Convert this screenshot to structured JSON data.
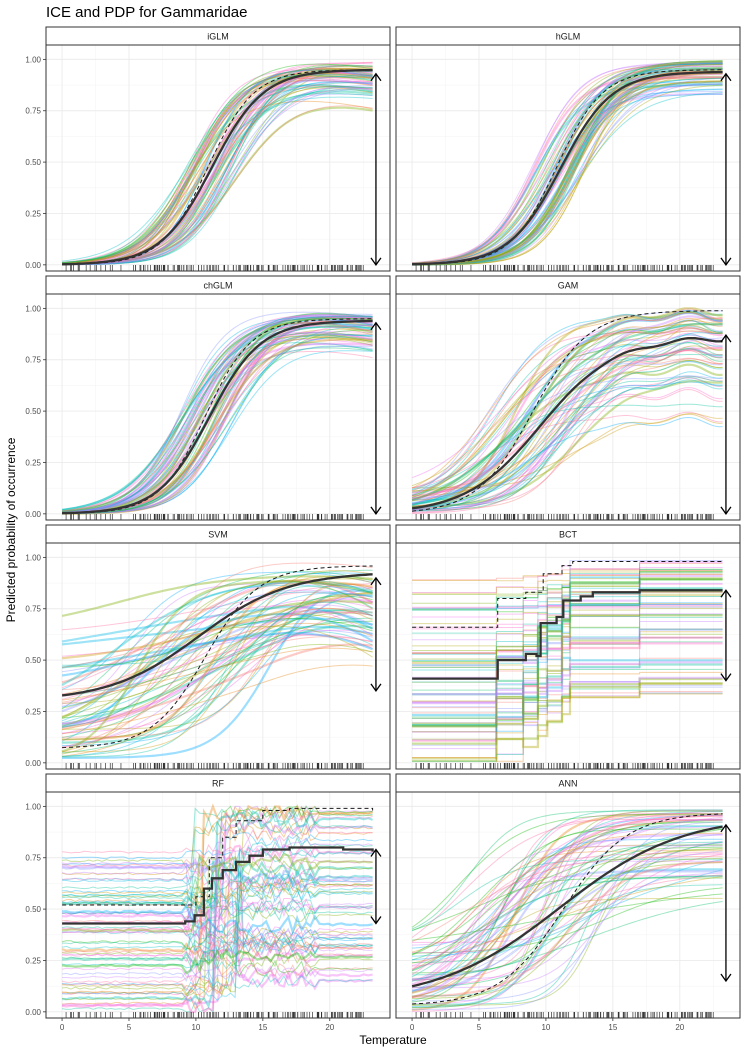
{
  "chart_data": {
    "type": "line",
    "title": "ICE and PDP for Gammaridae",
    "xlabel": "Temperature",
    "ylabel": "Predicted probability of occurrence",
    "xlim": [
      -1.2,
      24.5
    ],
    "ylim": [
      -0.03,
      1.07
    ],
    "x_ticks": [
      0,
      5,
      10,
      15,
      20
    ],
    "x_tick_labels": [
      "0",
      "5",
      "10",
      "15",
      "20"
    ],
    "y_ticks": [
      0,
      0.25,
      0.5,
      0.75,
      1
    ],
    "y_tick_labels": [
      "0.00",
      "0.25",
      "0.50",
      "0.75",
      "1.00"
    ],
    "grid": true,
    "legend": "none",
    "layout": {
      "rows": 4,
      "cols": 2
    },
    "colors": {
      "pdp": "#333333",
      "ice": [
        "#F8766D",
        "#E68613",
        "#CD9600",
        "#ABA300",
        "#7CAE00",
        "#0CB702",
        "#00BE67",
        "#00C19A",
        "#00BFC4",
        "#00B8E7",
        "#00A9FF",
        "#8494FF",
        "#C77CFF",
        "#ED68ED",
        "#FF61CC",
        "#FF68A1"
      ],
      "strip_fill": "#FFFFFF",
      "strip_border": "#333333",
      "grid": "#EBEBEB"
    },
    "rug_x": [
      0.3,
      0.7,
      1.2,
      1.8,
      2.1,
      2.9,
      3.6,
      4.4,
      5.5,
      6.2,
      6.9,
      7.1,
      7.6,
      8.3,
      8.7,
      9.1,
      9.4,
      9.8,
      10.2,
      10.6,
      11.0,
      11.3,
      11.7,
      12.1,
      12.4,
      12.8,
      13.2,
      13.6,
      13.9,
      14.3,
      14.7,
      15.0,
      15.4,
      15.8,
      16.1,
      16.5,
      16.9,
      17.2,
      17.6,
      18.0,
      18.3,
      18.7,
      19.1,
      19.4,
      19.8,
      20.2,
      20.6,
      20.9,
      21.3,
      21.7,
      22.1,
      22.5
    ],
    "panels": [
      {
        "name": "iGLM",
        "ice": {
          "kind": "sigmoid",
          "x0": [
            9.2,
            13.2
          ],
          "k": [
            0.42,
            0.62
          ],
          "top": [
            0.8,
            0.995
          ],
          "bottom": [
            0,
            0.002
          ],
          "droop": 0.001
        },
        "pdp": {
          "kind": "sigmoid",
          "x0": 11.2,
          "k": 0.52,
          "top": 0.95,
          "bottom": 0
        },
        "mean_dashed": {
          "kind": "sigmoid",
          "x0": 10.9,
          "k": 0.58,
          "top": 0.95,
          "bottom": 0
        },
        "arrow": [
          0.93,
          0.0
        ]
      },
      {
        "name": "hGLM",
        "ice": {
          "kind": "sigmoid",
          "x0": [
            9.0,
            13.0
          ],
          "k": [
            0.44,
            0.62
          ],
          "top": [
            0.82,
            0.995
          ],
          "bottom": [
            0,
            0.002
          ],
          "droop": 0.0
        },
        "pdp": {
          "kind": "sigmoid",
          "x0": 11.1,
          "k": 0.52,
          "top": 0.94,
          "bottom": 0
        },
        "mean_dashed": {
          "kind": "sigmoid",
          "x0": 10.8,
          "k": 0.58,
          "top": 0.95,
          "bottom": 0
        },
        "arrow": [
          0.93,
          0.0
        ]
      },
      {
        "name": "chGLM",
        "ice": {
          "kind": "sigmoid",
          "x0": [
            8.8,
            13.0
          ],
          "k": [
            0.42,
            0.62
          ],
          "top": [
            0.8,
            0.995
          ],
          "bottom": [
            0,
            0.002
          ],
          "droop": 0.0012
        },
        "pdp": {
          "kind": "sigmoid",
          "x0": 11.0,
          "k": 0.52,
          "top": 0.94,
          "bottom": 0
        },
        "mean_dashed": {
          "kind": "sigmoid",
          "x0": 10.7,
          "k": 0.58,
          "top": 0.95,
          "bottom": 0
        },
        "arrow": [
          0.93,
          0.0
        ]
      },
      {
        "name": "GAM",
        "ice": {
          "kind": "sigmoid",
          "x0": [
            5.5,
            12.5
          ],
          "k": [
            0.3,
            0.58
          ],
          "top": [
            0.3,
            0.995
          ],
          "bottom": [
            0,
            0.15
          ],
          "droop": 0.0,
          "wiggle": 0.04
        },
        "pdp": {
          "kind": "sigmoid",
          "x0": 9.6,
          "k": 0.36,
          "top": 0.86,
          "bottom": 0,
          "wiggle": 0.015
        },
        "mean_dashed": {
          "kind": "sigmoid",
          "x0": 9.0,
          "k": 0.48,
          "top": 0.99,
          "bottom": 0
        },
        "arrow": [
          0.87,
          0.0
        ]
      },
      {
        "name": "SVM",
        "ice": {
          "kind": "sigmoid",
          "x0": [
            4.0,
            16.0
          ],
          "k": [
            0.05,
            0.6
          ],
          "top": [
            0.6,
            0.98
          ],
          "bottom": [
            0.0,
            0.8
          ],
          "droop": 0.003
        },
        "pdp": {
          "kind": "sigmoid",
          "x0": 10.2,
          "k": 0.3,
          "top": 0.93,
          "bottom": 0.3
        },
        "mean_dashed": {
          "kind": "sigmoid",
          "x0": 10.7,
          "k": 0.5,
          "top": 0.96,
          "bottom": 0.07
        },
        "arrow": [
          0.9,
          0.35
        ]
      },
      {
        "name": "BCT",
        "ice": {
          "kind": "step",
          "steps": [
            6.3,
            8.3,
            9.4,
            10.1,
            11.2,
            11.8,
            17.0
          ],
          "top": [
            0.3,
            0.99
          ],
          "bottom": [
            0.0,
            0.9
          ]
        },
        "pdp": {
          "kind": "step",
          "points": [
            [
              0,
              0.41
            ],
            [
              6.2,
              0.41
            ],
            [
              6.4,
              0.5
            ],
            [
              8.5,
              0.53
            ],
            [
              9.3,
              0.52
            ],
            [
              9.6,
              0.68
            ],
            [
              10.8,
              0.71
            ],
            [
              11.3,
              0.79
            ],
            [
              12.6,
              0.81
            ],
            [
              13.5,
              0.83
            ],
            [
              17.0,
              0.84
            ],
            [
              23.2,
              0.84
            ]
          ]
        },
        "mean_dashed": {
          "kind": "step",
          "points": [
            [
              0,
              0.66
            ],
            [
              6.2,
              0.66
            ],
            [
              6.4,
              0.8
            ],
            [
              8.5,
              0.83
            ],
            [
              9.8,
              0.92
            ],
            [
              11.2,
              0.96
            ],
            [
              12.0,
              0.98
            ],
            [
              23.2,
              0.98
            ]
          ]
        },
        "arrow": [
          0.84,
          0.4
        ]
      },
      {
        "name": "RF",
        "ice": {
          "kind": "noisy-step",
          "jump": [
            9.5,
            13.5
          ],
          "top": [
            0.15,
            0.99
          ],
          "bottom": [
            0.0,
            0.78
          ]
        },
        "pdp": {
          "kind": "step",
          "points": [
            [
              0,
              0.43
            ],
            [
              9.2,
              0.44
            ],
            [
              9.9,
              0.47
            ],
            [
              10.6,
              0.6
            ],
            [
              11.2,
              0.65
            ],
            [
              12.0,
              0.69
            ],
            [
              13.0,
              0.73
            ],
            [
              14.0,
              0.76
            ],
            [
              15.0,
              0.79
            ],
            [
              17.0,
              0.8
            ],
            [
              19.0,
              0.8
            ],
            [
              21.0,
              0.79
            ],
            [
              23.2,
              0.78
            ]
          ]
        },
        "mean_dashed": {
          "kind": "step",
          "points": [
            [
              0,
              0.52
            ],
            [
              9.2,
              0.52
            ],
            [
              10.0,
              0.56
            ],
            [
              11.0,
              0.75
            ],
            [
              12.0,
              0.85
            ],
            [
              13.0,
              0.93
            ],
            [
              15.0,
              0.98
            ],
            [
              17.0,
              0.99
            ],
            [
              23.2,
              0.98
            ]
          ]
        },
        "arrow": [
          0.79,
          0.43
        ]
      },
      {
        "name": "ANN",
        "ice": {
          "kind": "sigmoid",
          "x0": [
            3.0,
            15.0
          ],
          "k": [
            0.1,
            0.8
          ],
          "top": [
            0.5,
            0.99
          ],
          "bottom": [
            0.0,
            0.5
          ],
          "droop": 0.0
        },
        "pdp": {
          "kind": "sigmoid",
          "x0": 11.0,
          "k": 0.22,
          "top": 0.96,
          "bottom": 0.05
        },
        "mean_dashed": {
          "kind": "sigmoid",
          "x0": 11.3,
          "k": 0.42,
          "top": 0.97,
          "bottom": 0.03
        },
        "arrow": [
          0.91,
          0.15
        ]
      }
    ]
  }
}
